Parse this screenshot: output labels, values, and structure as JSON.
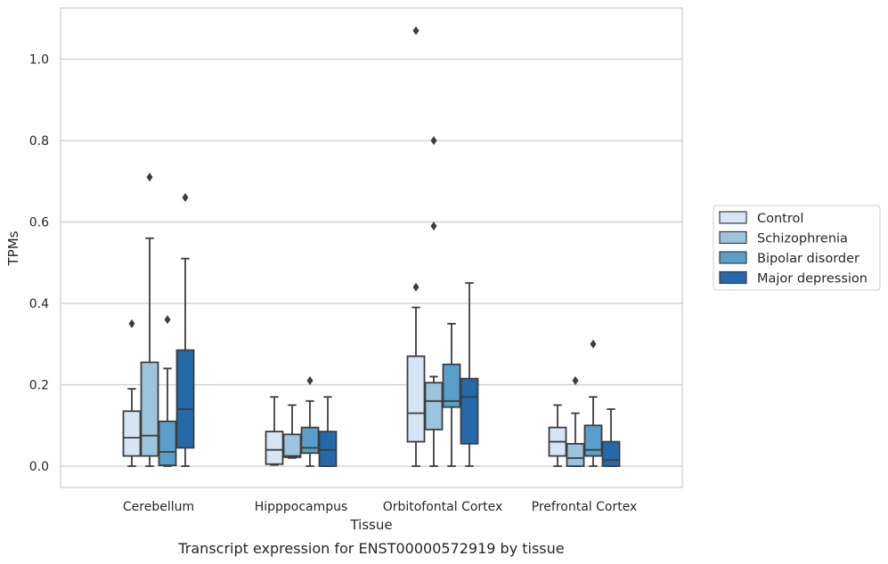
{
  "chart_data": {
    "type": "box",
    "xlabel": "Tissue",
    "ylabel": "TPMs",
    "caption": "Transcript expression for ENST00000572919 by tissue",
    "ylim": [
      -0.05,
      1.13
    ],
    "yticks": [
      0.0,
      0.2,
      0.4,
      0.6,
      0.8,
      1.0
    ],
    "ytick_labels": [
      "0.0",
      "0.2",
      "0.4",
      "0.6",
      "0.8",
      "1.0"
    ],
    "grid": "horizontal",
    "legend_position": "right",
    "categories": [
      "Cerebellum",
      "Hipppocampus",
      "Orbitofontal Cortex",
      "Prefrontal Cortex"
    ],
    "series": [
      {
        "name": "Control",
        "color": "#d6e5f4",
        "boxes": [
          {
            "whisker_low": 0.0,
            "q1": 0.025,
            "median": 0.07,
            "q3": 0.135,
            "whisker_high": 0.19,
            "outliers": [
              0.35
            ]
          },
          {
            "whisker_low": 0.003,
            "q1": 0.005,
            "median": 0.04,
            "q3": 0.085,
            "whisker_high": 0.17,
            "outliers": []
          },
          {
            "whisker_low": 0.0,
            "q1": 0.06,
            "median": 0.13,
            "q3": 0.27,
            "whisker_high": 0.39,
            "outliers": [
              0.44,
              1.07
            ]
          },
          {
            "whisker_low": 0.0,
            "q1": 0.025,
            "median": 0.06,
            "q3": 0.095,
            "whisker_high": 0.15,
            "outliers": []
          }
        ]
      },
      {
        "name": "Schizophrenia",
        "color": "#9cc4dd",
        "boxes": [
          {
            "whisker_low": 0.0,
            "q1": 0.025,
            "median": 0.075,
            "q3": 0.255,
            "whisker_high": 0.56,
            "outliers": [
              0.71
            ]
          },
          {
            "whisker_low": 0.02,
            "q1": 0.022,
            "median": 0.025,
            "q3": 0.078,
            "whisker_high": 0.15,
            "outliers": []
          },
          {
            "whisker_low": 0.0,
            "q1": 0.09,
            "median": 0.16,
            "q3": 0.205,
            "whisker_high": 0.22,
            "outliers": [
              0.59,
              0.8
            ]
          },
          {
            "whisker_low": 0.0,
            "q1": 0.0,
            "median": 0.02,
            "q3": 0.055,
            "whisker_high": 0.13,
            "outliers": [
              0.21
            ]
          }
        ]
      },
      {
        "name": "Bipolar disorder",
        "color": "#5a9fcb",
        "boxes": [
          {
            "whisker_low": 0.0,
            "q1": 0.002,
            "median": 0.035,
            "q3": 0.11,
            "whisker_high": 0.24,
            "outliers": [
              0.36
            ]
          },
          {
            "whisker_low": 0.0,
            "q1": 0.032,
            "median": 0.045,
            "q3": 0.095,
            "whisker_high": 0.16,
            "outliers": [
              0.21
            ]
          },
          {
            "whisker_low": 0.0,
            "q1": 0.145,
            "median": 0.16,
            "q3": 0.25,
            "whisker_high": 0.35,
            "outliers": []
          },
          {
            "whisker_low": 0.0,
            "q1": 0.025,
            "median": 0.04,
            "q3": 0.1,
            "whisker_high": 0.17,
            "outliers": [
              0.3
            ]
          }
        ]
      },
      {
        "name": "Major depression",
        "color": "#2469a9",
        "boxes": [
          {
            "whisker_low": 0.0,
            "q1": 0.045,
            "median": 0.14,
            "q3": 0.285,
            "whisker_high": 0.51,
            "outliers": [
              0.66
            ]
          },
          {
            "whisker_low": 0.0,
            "q1": 0.0,
            "median": 0.04,
            "q3": 0.085,
            "whisker_high": 0.17,
            "outliers": []
          },
          {
            "whisker_low": 0.0,
            "q1": 0.055,
            "median": 0.17,
            "q3": 0.215,
            "whisker_high": 0.45,
            "outliers": []
          },
          {
            "whisker_low": 0.0,
            "q1": 0.0,
            "median": 0.015,
            "q3": 0.06,
            "whisker_high": 0.14,
            "outliers": []
          }
        ]
      }
    ]
  }
}
